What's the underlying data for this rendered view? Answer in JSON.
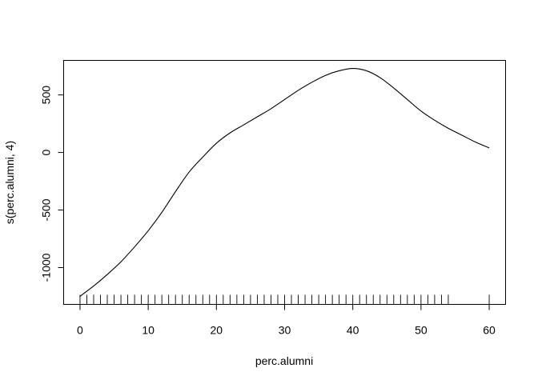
{
  "chart_data": {
    "type": "line",
    "xlabel": "perc.alumni",
    "ylabel": "s(perc.alumni, 4)",
    "xlim": [
      -2.4,
      62.4
    ],
    "ylim": [
      -1320,
      800
    ],
    "x_ticks": [
      0,
      10,
      20,
      30,
      40,
      50,
      60
    ],
    "y_ticks": [
      -1000,
      -500,
      0,
      500
    ],
    "x_tick_labels": [
      "0",
      "10",
      "20",
      "30",
      "40",
      "50",
      "60"
    ],
    "y_tick_labels": [
      "-1000",
      "-500",
      "0",
      "500"
    ],
    "series": [
      {
        "x": [
          0,
          2,
          4,
          6,
          8,
          10,
          12,
          14,
          16,
          18,
          20,
          22,
          24,
          26,
          28,
          30,
          32,
          34,
          36,
          38,
          40,
          42,
          44,
          46,
          48,
          50,
          52,
          54,
          56,
          58,
          60
        ],
        "y": [
          -1250,
          -1160,
          -1060,
          -950,
          -820,
          -680,
          -520,
          -340,
          -170,
          -40,
          80,
          170,
          240,
          310,
          380,
          460,
          540,
          610,
          670,
          710,
          730,
          710,
          650,
          560,
          460,
          360,
          280,
          210,
          150,
          90,
          40
        ]
      }
    ],
    "rug": [
      0,
      1,
      2,
      3,
      4,
      5,
      6,
      7,
      8,
      9,
      10,
      11,
      12,
      13,
      14,
      15,
      16,
      17,
      18,
      19,
      20,
      21,
      22,
      23,
      24,
      25,
      26,
      27,
      28,
      29,
      30,
      31,
      32,
      33,
      34,
      35,
      36,
      37,
      38,
      39,
      40,
      41,
      42,
      43,
      44,
      45,
      46,
      47,
      48,
      49,
      50,
      51,
      52,
      53,
      54,
      60
    ],
    "grid": false,
    "legend": "none"
  }
}
